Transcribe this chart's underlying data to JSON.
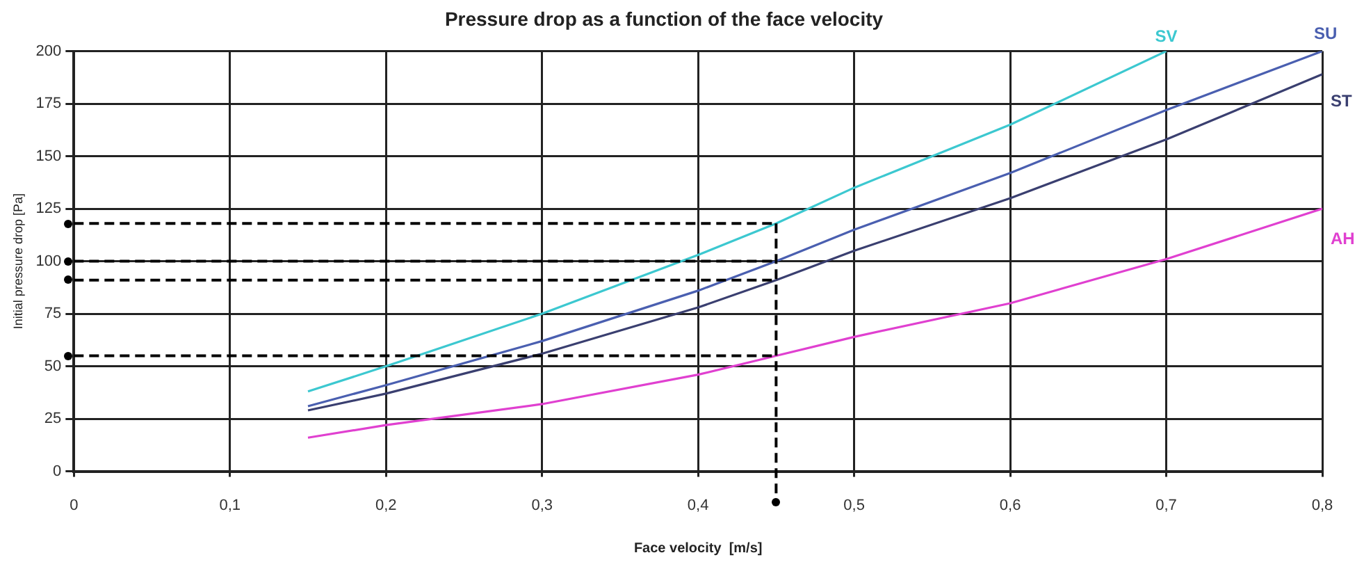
{
  "chart_data": {
    "type": "line",
    "title": "Pressure drop as a function of the face velocity",
    "xlabel": "Face velocity  [m/s]",
    "ylabel": "Initial pressure drop [Pa]",
    "xlim": [
      0,
      0.8
    ],
    "xticks": [
      0,
      {
        "value": 0.1,
        "label": "0,1"
      },
      {
        "value": 0.2,
        "label": "0,2"
      },
      {
        "value": 0.3,
        "label": "0,3"
      },
      {
        "value": 0.4,
        "label": "0,4"
      },
      {
        "value": 0.5,
        "label": "0,5"
      },
      {
        "value": 0.6,
        "label": "0,6"
      },
      {
        "value": 0.7,
        "label": "0,7"
      },
      {
        "value": 0.8,
        "label": "0,8"
      }
    ],
    "ylim": [
      0,
      200
    ],
    "yticks": [
      0,
      25,
      50,
      75,
      100,
      125,
      150,
      175,
      200
    ],
    "grid": true,
    "legend": false,
    "marker": "none",
    "series": [
      {
        "name": "SV",
        "color": "#3cc8d0",
        "x": [
          0.15,
          0.2,
          0.3,
          0.4,
          0.45,
          0.5,
          0.6,
          0.7
        ],
        "values": [
          38,
          50,
          75,
          103,
          118,
          135,
          165,
          200
        ]
      },
      {
        "name": "SU",
        "color": "#4a5fb0",
        "x": [
          0.15,
          0.2,
          0.3,
          0.4,
          0.45,
          0.5,
          0.6,
          0.7,
          0.8
        ],
        "values": [
          31,
          41,
          62,
          86,
          100,
          115,
          142,
          172,
          200
        ]
      },
      {
        "name": "ST",
        "color": "#3a3f70",
        "x": [
          0.15,
          0.2,
          0.3,
          0.4,
          0.45,
          0.5,
          0.6,
          0.7,
          0.8
        ],
        "values": [
          29,
          37,
          56,
          78,
          91,
          105,
          130,
          158,
          189
        ]
      },
      {
        "name": "AH",
        "color": "#e040d0",
        "x": [
          0.15,
          0.2,
          0.3,
          0.4,
          0.45,
          0.5,
          0.6,
          0.7,
          0.8
        ],
        "values": [
          16,
          22,
          32,
          46,
          55,
          64,
          80,
          101,
          125
        ]
      }
    ],
    "ref_lines": [
      {
        "axis": "y",
        "value": 118,
        "line_style": "dashed",
        "color": "#000000"
      },
      {
        "axis": "y",
        "value": 100,
        "line_style": "dashed",
        "color": "#000000"
      },
      {
        "axis": "y",
        "value": 91,
        "line_style": "dashed",
        "color": "#000000"
      },
      {
        "axis": "y",
        "value": 55,
        "line_style": "dashed",
        "color": "#000000"
      },
      {
        "axis": "x",
        "value": 0.45,
        "line_style": "dashed",
        "color": "#000000"
      }
    ]
  }
}
